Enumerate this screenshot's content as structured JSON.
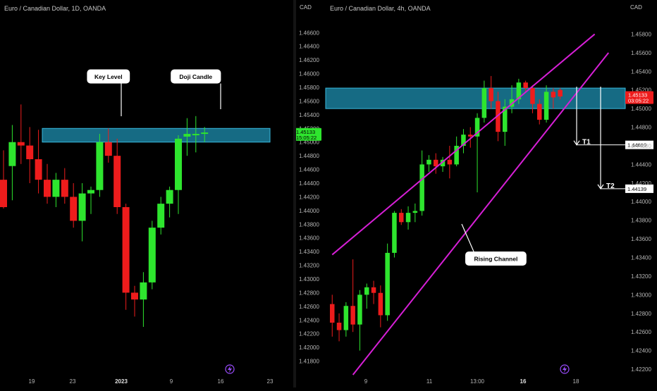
{
  "colors": {
    "background": "#000000",
    "up": "#2ee52e",
    "down": "#ee1c1c",
    "zone_fill": "#1e8fb0",
    "zone_stroke": "#39b8dd",
    "channel": "#d61fd6",
    "axis_text": "#b5b5b5",
    "divider": "#2a2a2a",
    "current_green": "#2ee52e",
    "current_red": "#ee1c1c"
  },
  "chart_data": [
    {
      "type": "candlestick",
      "title": "Euro / Canadian Dollar, 1D, OANDA",
      "currency": "CAD",
      "ylim": [
        1.416,
        1.4685
      ],
      "y_ticks": [
        "1.46600",
        "1.46400",
        "1.46200",
        "1.46000",
        "1.45800",
        "1.45600",
        "1.45400",
        "1.45200",
        "1.45000",
        "1.44800",
        "1.44600",
        "1.44400",
        "1.44200",
        "1.44000",
        "1.43800",
        "1.43600",
        "1.43400",
        "1.43200",
        "1.43000",
        "1.42800",
        "1.42600",
        "1.42400",
        "1.42200",
        "1.42000",
        "1.41800"
      ],
      "x_ticks": [
        "19",
        "23",
        "2023",
        "9",
        "16",
        "23"
      ],
      "candles": [
        {
          "o": 1.4445,
          "h": 1.4488,
          "l": 1.4403,
          "c": 1.4405
        },
        {
          "o": 1.4465,
          "h": 1.4525,
          "l": 1.4415,
          "c": 1.45
        },
        {
          "o": 1.45,
          "h": 1.4555,
          "l": 1.4468,
          "c": 1.4495
        },
        {
          "o": 1.4495,
          "h": 1.4522,
          "l": 1.444,
          "c": 1.4475
        },
        {
          "o": 1.4475,
          "h": 1.4518,
          "l": 1.4425,
          "c": 1.4445
        },
        {
          "o": 1.4445,
          "h": 1.4468,
          "l": 1.441,
          "c": 1.442
        },
        {
          "o": 1.442,
          "h": 1.4455,
          "l": 1.4405,
          "c": 1.4445
        },
        {
          "o": 1.4445,
          "h": 1.4462,
          "l": 1.441,
          "c": 1.442
        },
        {
          "o": 1.442,
          "h": 1.444,
          "l": 1.4375,
          "c": 1.4385
        },
        {
          "o": 1.4385,
          "h": 1.444,
          "l": 1.4355,
          "c": 1.4425
        },
        {
          "o": 1.4425,
          "h": 1.4435,
          "l": 1.4395,
          "c": 1.443
        },
        {
          "o": 1.443,
          "h": 1.4512,
          "l": 1.442,
          "c": 1.45
        },
        {
          "o": 1.45,
          "h": 1.452,
          "l": 1.447,
          "c": 1.448
        },
        {
          "o": 1.448,
          "h": 1.4505,
          "l": 1.4395,
          "c": 1.4405
        },
        {
          "o": 1.4405,
          "h": 1.441,
          "l": 1.4255,
          "c": 1.428
        },
        {
          "o": 1.428,
          "h": 1.429,
          "l": 1.4245,
          "c": 1.427
        },
        {
          "o": 1.427,
          "h": 1.431,
          "l": 1.423,
          "c": 1.4295
        },
        {
          "o": 1.4295,
          "h": 1.4385,
          "l": 1.4285,
          "c": 1.4375
        },
        {
          "o": 1.4375,
          "h": 1.442,
          "l": 1.4365,
          "c": 1.441
        },
        {
          "o": 1.441,
          "h": 1.4435,
          "l": 1.439,
          "c": 1.443
        },
        {
          "o": 1.443,
          "h": 1.451,
          "l": 1.4395,
          "c": 1.4505
        },
        {
          "o": 1.4508,
          "h": 1.4535,
          "l": 1.448,
          "c": 1.4512
        },
        {
          "o": 1.451,
          "h": 1.4538,
          "l": 1.4485,
          "c": 1.4512
        },
        {
          "o": 1.4512,
          "h": 1.4522,
          "l": 1.45,
          "c": 1.4514
        }
      ],
      "zone": {
        "from": 1.45,
        "to": 1.452
      },
      "current_price": {
        "price": 1.45133,
        "label": "1.45133",
        "countdown": "15:05:22"
      },
      "annotations": [
        {
          "label": "Key Level",
          "x_index": 12,
          "y": 1.4597
        },
        {
          "label": "Doji Candle",
          "x_index": 22,
          "y": 1.4597
        }
      ]
    },
    {
      "type": "candlestick",
      "title": "Euro / Canadian Dollar, 4h, OANDA",
      "currency": "CAD",
      "ylim": [
        1.4214,
        1.46
      ],
      "y_ticks": [
        "1.45800",
        "1.45600",
        "1.45400",
        "1.45200",
        "1.45000",
        "1.44800",
        "1.44600",
        "1.44400",
        "1.44200",
        "1.44000",
        "1.43800",
        "1.43600",
        "1.43400",
        "1.43200",
        "1.43000",
        "1.42800",
        "1.42600",
        "1.42400",
        "1.42200"
      ],
      "x_ticks": [
        "9",
        "11",
        "13:00",
        "16",
        "18"
      ],
      "candles": [
        {
          "o": 1.429,
          "h": 1.43,
          "l": 1.4255,
          "c": 1.427
        },
        {
          "o": 1.427,
          "h": 1.428,
          "l": 1.425,
          "c": 1.4262
        },
        {
          "o": 1.4262,
          "h": 1.4292,
          "l": 1.4255,
          "c": 1.4288
        },
        {
          "o": 1.4288,
          "h": 1.4338,
          "l": 1.426,
          "c": 1.4268
        },
        {
          "o": 1.4268,
          "h": 1.4305,
          "l": 1.424,
          "c": 1.43
        },
        {
          "o": 1.43,
          "h": 1.4312,
          "l": 1.4285,
          "c": 1.4308
        },
        {
          "o": 1.4308,
          "h": 1.4315,
          "l": 1.429,
          "c": 1.4302
        },
        {
          "o": 1.4302,
          "h": 1.431,
          "l": 1.4265,
          "c": 1.4278
        },
        {
          "o": 1.4278,
          "h": 1.4355,
          "l": 1.4272,
          "c": 1.4345
        },
        {
          "o": 1.4345,
          "h": 1.439,
          "l": 1.434,
          "c": 1.4388
        },
        {
          "o": 1.4388,
          "h": 1.4392,
          "l": 1.4375,
          "c": 1.4378
        },
        {
          "o": 1.4378,
          "h": 1.4395,
          "l": 1.437,
          "c": 1.4388
        },
        {
          "o": 1.4388,
          "h": 1.4398,
          "l": 1.4378,
          "c": 1.439
        },
        {
          "o": 1.439,
          "h": 1.4455,
          "l": 1.4385,
          "c": 1.444
        },
        {
          "o": 1.444,
          "h": 1.445,
          "l": 1.4432,
          "c": 1.4445
        },
        {
          "o": 1.4445,
          "h": 1.4452,
          "l": 1.443,
          "c": 1.4438
        },
        {
          "o": 1.4438,
          "h": 1.4448,
          "l": 1.4432,
          "c": 1.4445
        },
        {
          "o": 1.4445,
          "h": 1.446,
          "l": 1.4425,
          "c": 1.444
        },
        {
          "o": 1.444,
          "h": 1.447,
          "l": 1.4438,
          "c": 1.446
        },
        {
          "o": 1.446,
          "h": 1.4478,
          "l": 1.4452,
          "c": 1.4472
        },
        {
          "o": 1.4472,
          "h": 1.448,
          "l": 1.4458,
          "c": 1.447
        },
        {
          "o": 1.447,
          "h": 1.4495,
          "l": 1.441,
          "c": 1.449
        },
        {
          "o": 1.449,
          "h": 1.453,
          "l": 1.4485,
          "c": 1.4522
        },
        {
          "o": 1.4522,
          "h": 1.4535,
          "l": 1.45,
          "c": 1.4508
        },
        {
          "o": 1.4508,
          "h": 1.4518,
          "l": 1.4465,
          "c": 1.4475
        },
        {
          "o": 1.4475,
          "h": 1.451,
          "l": 1.446,
          "c": 1.4502
        },
        {
          "o": 1.4502,
          "h": 1.4525,
          "l": 1.4495,
          "c": 1.451
        },
        {
          "o": 1.451,
          "h": 1.4532,
          "l": 1.4505,
          "c": 1.4528
        },
        {
          "o": 1.4528,
          "h": 1.453,
          "l": 1.4518,
          "c": 1.4522
        },
        {
          "o": 1.4522,
          "h": 1.4525,
          "l": 1.4495,
          "c": 1.4505
        },
        {
          "o": 1.4505,
          "h": 1.451,
          "l": 1.4483,
          "c": 1.4488
        },
        {
          "o": 1.4488,
          "h": 1.4525,
          "l": 1.4485,
          "c": 1.4518
        },
        {
          "o": 1.4518,
          "h": 1.4522,
          "l": 1.45,
          "c": 1.4512
        },
        {
          "o": 1.452,
          "h": 1.4522,
          "l": 1.451,
          "c": 1.4513
        }
      ],
      "zone": {
        "from": 1.45,
        "to": 1.4522
      },
      "channel": {
        "upper": [
          {
            "i": 0,
            "y": 1.4343
          },
          {
            "i": 38,
            "y": 1.458
          }
        ],
        "lower": [
          {
            "i": 3,
            "y": 1.4214
          },
          {
            "i": 40,
            "y": 1.456
          }
        ]
      },
      "current_price": {
        "price": 1.45133,
        "label": "1.45133",
        "countdown": "03:05:22"
      },
      "targets": [
        {
          "label": "T1",
          "price": 1.4461,
          "price_label": "1.44610"
        },
        {
          "label": "T2",
          "price": 1.44139,
          "price_label": "1.44139"
        }
      ],
      "annotations": [
        {
          "label": "Rising Channel",
          "x_index": 27,
          "y": 1.4337
        }
      ]
    }
  ]
}
